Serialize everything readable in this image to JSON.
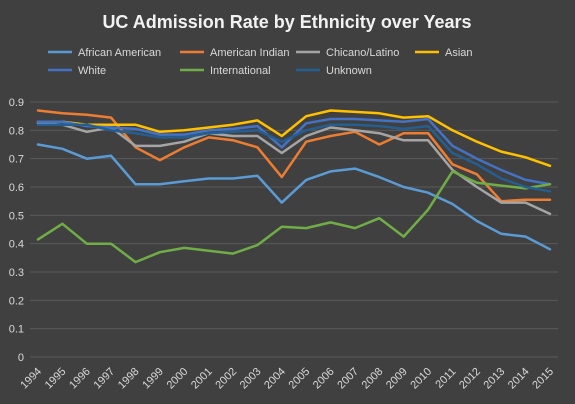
{
  "chart_data": {
    "type": "line",
    "title": "UC Admission Rate by Ethnicity over Years",
    "xlabel": "",
    "ylabel": "",
    "ylim": [
      0,
      0.9
    ],
    "yticks": [
      "0",
      "0.1",
      "0.2",
      "0.3",
      "0.4",
      "0.5",
      "0.6",
      "0.7",
      "0.8",
      "0.9"
    ],
    "grid": true,
    "legend_position": "top",
    "categories": [
      "1994",
      "1995",
      "1996",
      "1997",
      "1998",
      "1999",
      "2000",
      "2001",
      "2002",
      "2003",
      "2004",
      "2005",
      "2006",
      "2007",
      "2008",
      "2009",
      "2010",
      "2011",
      "2012",
      "2013",
      "2014",
      "2015"
    ],
    "series": [
      {
        "name": "African American",
        "color": "#5b9bd5",
        "values": [
          0.75,
          0.735,
          0.7,
          0.71,
          0.61,
          0.61,
          0.62,
          0.63,
          0.63,
          0.64,
          0.545,
          0.625,
          0.655,
          0.665,
          0.635,
          0.6,
          0.58,
          0.54,
          0.48,
          0.435,
          0.425,
          0.38
        ]
      },
      {
        "name": "American Indian",
        "color": "#ed7d31",
        "values": [
          0.87,
          0.86,
          0.855,
          0.845,
          0.74,
          0.695,
          0.74,
          0.775,
          0.765,
          0.74,
          0.635,
          0.76,
          0.78,
          0.795,
          0.75,
          0.79,
          0.79,
          0.68,
          0.645,
          0.55,
          0.555,
          0.555
        ]
      },
      {
        "name": "Chicano/Latino",
        "color": "#a5a5a5",
        "values": [
          0.825,
          0.82,
          0.795,
          0.81,
          0.745,
          0.745,
          0.76,
          0.79,
          0.78,
          0.78,
          0.72,
          0.78,
          0.81,
          0.8,
          0.79,
          0.765,
          0.765,
          0.66,
          0.6,
          0.545,
          0.545,
          0.505
        ]
      },
      {
        "name": "Asian",
        "color": "#ffc000",
        "values": [
          0.83,
          0.83,
          0.82,
          0.82,
          0.82,
          0.795,
          0.8,
          0.81,
          0.82,
          0.835,
          0.78,
          0.85,
          0.87,
          0.865,
          0.86,
          0.845,
          0.85,
          0.8,
          0.76,
          0.725,
          0.705,
          0.675
        ]
      },
      {
        "name": "White",
        "color": "#4472c4",
        "values": [
          0.83,
          0.83,
          0.815,
          0.81,
          0.805,
          0.785,
          0.785,
          0.8,
          0.805,
          0.815,
          0.74,
          0.825,
          0.84,
          0.84,
          0.835,
          0.83,
          0.84,
          0.745,
          0.7,
          0.66,
          0.625,
          0.61
        ]
      },
      {
        "name": "International",
        "color": "#70ad47",
        "values": [
          0.415,
          0.47,
          0.4,
          0.4,
          0.335,
          0.37,
          0.385,
          0.375,
          0.365,
          0.395,
          0.46,
          0.455,
          0.475,
          0.455,
          0.49,
          0.425,
          0.52,
          0.655,
          0.615,
          0.605,
          0.595,
          0.61
        ]
      },
      {
        "name": "Unknown",
        "color": "#255e91",
        "values": [
          0.82,
          0.82,
          0.82,
          0.8,
          0.79,
          0.775,
          0.775,
          0.79,
          0.795,
          0.8,
          0.76,
          0.8,
          0.82,
          0.82,
          0.815,
          0.805,
          0.815,
          0.72,
          0.68,
          0.63,
          0.6,
          0.585
        ]
      }
    ]
  }
}
